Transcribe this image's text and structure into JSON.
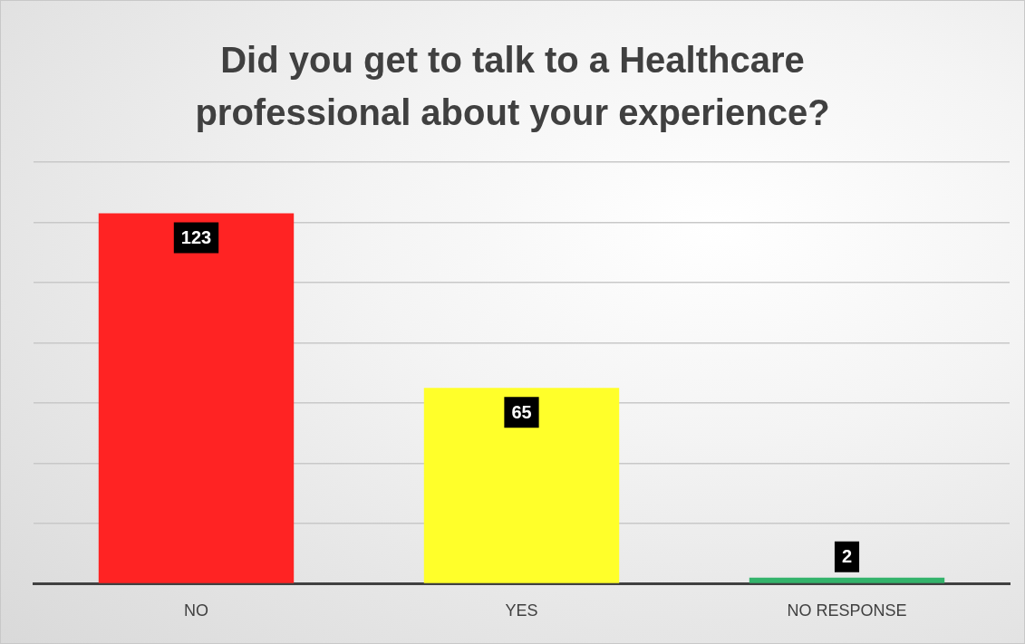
{
  "chart_data": {
    "type": "bar",
    "title": "Did you get to talk to a Healthcare professional about your experience?",
    "categories": [
      "NO",
      "YES",
      "NO RESPONSE"
    ],
    "values": [
      123,
      65,
      2
    ],
    "colors": [
      "#ff2323",
      "#ffff2a",
      "#33b36b"
    ],
    "ylim": [
      0,
      140
    ],
    "yticks": [
      {
        "value": 0,
        "label": null
      },
      {
        "value": 20,
        "label": null
      },
      {
        "value": 40,
        "label": null
      },
      {
        "value": 60,
        "label": null
      },
      {
        "value": 80,
        "label": null
      },
      {
        "value": 100,
        "label": null
      },
      {
        "value": 120,
        "label": null
      },
      {
        "value": 140,
        "label": null
      }
    ],
    "tick_labels": "x",
    "grid": "y",
    "legend": false,
    "data_labels": true
  }
}
